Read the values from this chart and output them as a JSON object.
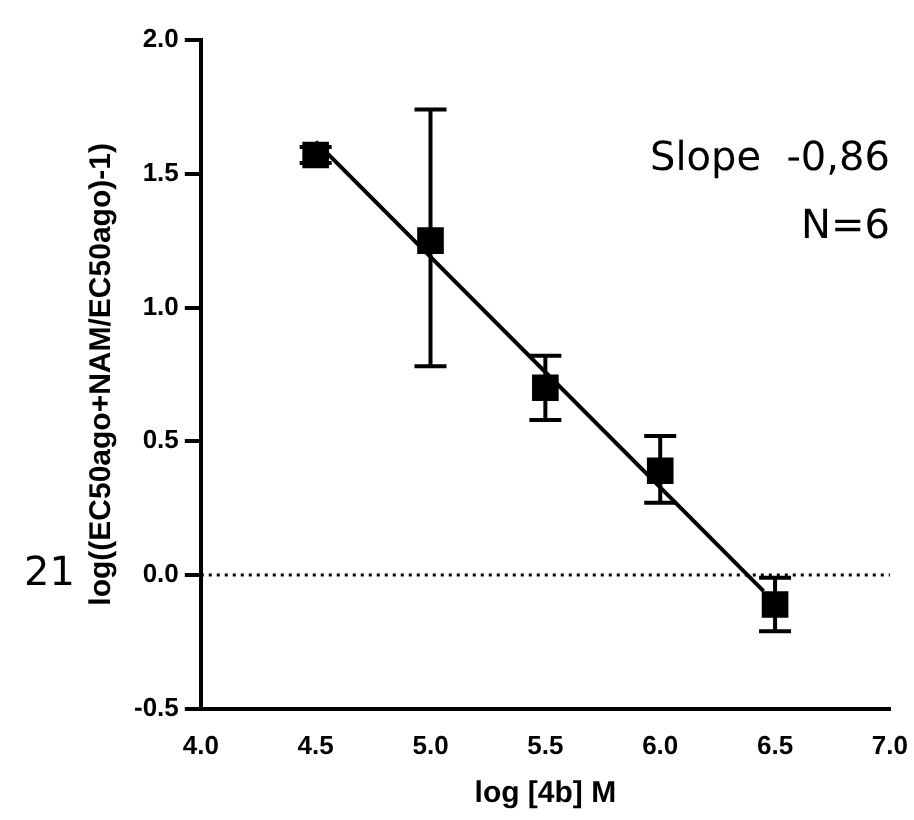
{
  "chart_data": {
    "type": "scatter",
    "xlabel": "log [4b] M",
    "ylabel": "log((EC50ago+NAM/EC50ago)-1)",
    "x": [
      4.5,
      5.0,
      5.5,
      6.0,
      6.5
    ],
    "series": [
      {
        "color": "#000000",
        "values": [
          1.57,
          1.25,
          0.7,
          0.39,
          -0.11
        ],
        "errors": [
          0.03,
          [
            0.78,
            1.74
          ],
          [
            0.58,
            0.82
          ],
          [
            0.27,
            0.52
          ],
          [
            -0.21,
            -0.01
          ]
        ],
        "marker": "square"
      },
      {
        "type": "line",
        "color": "#000000",
        "x": [
          4.5,
          6.45
        ],
        "values": [
          1.62,
          -0.06
        ],
        "marker": "none",
        "line_style": "solid"
      }
    ],
    "xlim": [
      4.0,
      7.0
    ],
    "xticks": [
      {
        "value": 4,
        "label": "4.0"
      },
      4.5,
      {
        "value": 5,
        "label": "5.0"
      },
      5.5,
      {
        "value": 6,
        "label": "6.0"
      },
      6.5,
      {
        "value": 7,
        "label": "7.0"
      }
    ],
    "ylim": [
      -0.5,
      2.0
    ],
    "yticks": [
      -0.5,
      {
        "value": 0,
        "label": "0.0"
      },
      0.5,
      {
        "value": 1,
        "label": "1.0"
      },
      1.5,
      {
        "value": 2,
        "label": "2.0"
      }
    ],
    "ref_lines": [
      {
        "axis": "y",
        "value": 0,
        "line_style": "dotted",
        "color": "#000000"
      }
    ],
    "annotations": [
      "Slope  -0,86",
      "N=6",
      "21"
    ],
    "grid": false,
    "legend": false
  }
}
